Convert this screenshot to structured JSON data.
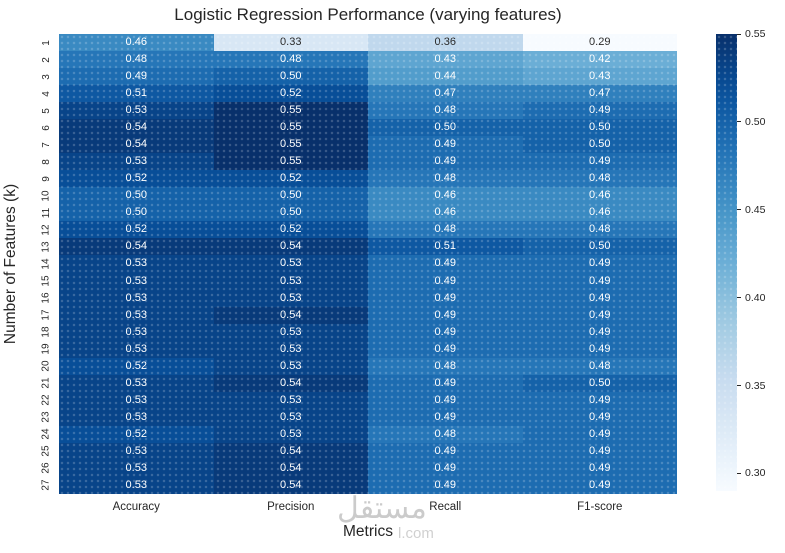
{
  "title": "Logistic Regression Performance (varying features)",
  "watermark": {
    "brand_arabic": "مستقل",
    "brand_latin": "l.com"
  },
  "chart_data": {
    "type": "heatmap",
    "title": "Logistic Regression Performance (varying features)",
    "xlabel": "Metrics",
    "ylabel": "Number of Features (k)",
    "columns": [
      "Accuracy",
      "Precision",
      "Recall",
      "F1-score"
    ],
    "rows": [
      "1",
      "2",
      "3",
      "4",
      "5",
      "6",
      "7",
      "8",
      "9",
      "10",
      "11",
      "12",
      "13",
      "14",
      "15",
      "16",
      "17",
      "18",
      "19",
      "20",
      "21",
      "22",
      "23",
      "24",
      "25",
      "26",
      "27"
    ],
    "values": [
      [
        0.46,
        0.33,
        0.36,
        0.29
      ],
      [
        0.48,
        0.48,
        0.43,
        0.42
      ],
      [
        0.49,
        0.5,
        0.44,
        0.43
      ],
      [
        0.51,
        0.52,
        0.47,
        0.47
      ],
      [
        0.53,
        0.55,
        0.48,
        0.49
      ],
      [
        0.54,
        0.55,
        0.5,
        0.5
      ],
      [
        0.54,
        0.55,
        0.49,
        0.5
      ],
      [
        0.53,
        0.55,
        0.49,
        0.49
      ],
      [
        0.52,
        0.52,
        0.48,
        0.48
      ],
      [
        0.5,
        0.5,
        0.46,
        0.46
      ],
      [
        0.5,
        0.5,
        0.46,
        0.46
      ],
      [
        0.52,
        0.52,
        0.48,
        0.48
      ],
      [
        0.54,
        0.54,
        0.51,
        0.5
      ],
      [
        0.53,
        0.53,
        0.49,
        0.49
      ],
      [
        0.53,
        0.53,
        0.49,
        0.49
      ],
      [
        0.53,
        0.53,
        0.49,
        0.49
      ],
      [
        0.53,
        0.54,
        0.49,
        0.49
      ],
      [
        0.53,
        0.53,
        0.49,
        0.49
      ],
      [
        0.53,
        0.53,
        0.49,
        0.49
      ],
      [
        0.52,
        0.53,
        0.48,
        0.48
      ],
      [
        0.53,
        0.54,
        0.49,
        0.5
      ],
      [
        0.53,
        0.53,
        0.49,
        0.49
      ],
      [
        0.53,
        0.53,
        0.49,
        0.49
      ],
      [
        0.52,
        0.53,
        0.48,
        0.49
      ],
      [
        0.53,
        0.54,
        0.49,
        0.49
      ],
      [
        0.53,
        0.54,
        0.49,
        0.49
      ],
      [
        0.53,
        0.54,
        0.49,
        0.49
      ]
    ],
    "vmin": 0.29,
    "vmax": 0.55,
    "colormap": "Blues",
    "colormap_anchors": [
      [
        0.0,
        "#f7fbff"
      ],
      [
        0.125,
        "#deebf7"
      ],
      [
        0.25,
        "#c6dbef"
      ],
      [
        0.375,
        "#9ecae1"
      ],
      [
        0.5,
        "#6baed6"
      ],
      [
        0.625,
        "#4292c6"
      ],
      [
        0.75,
        "#2171b5"
      ],
      [
        0.875,
        "#08519c"
      ],
      [
        1.0,
        "#08306b"
      ]
    ],
    "colorbar_ticks": [
      0.55,
      0.5,
      0.45,
      0.4,
      0.35,
      0.3
    ],
    "annotation_colors": {
      "on_light": "#262626",
      "on_dark": "#ffffff"
    },
    "legend_position": "right",
    "grid": false
  }
}
